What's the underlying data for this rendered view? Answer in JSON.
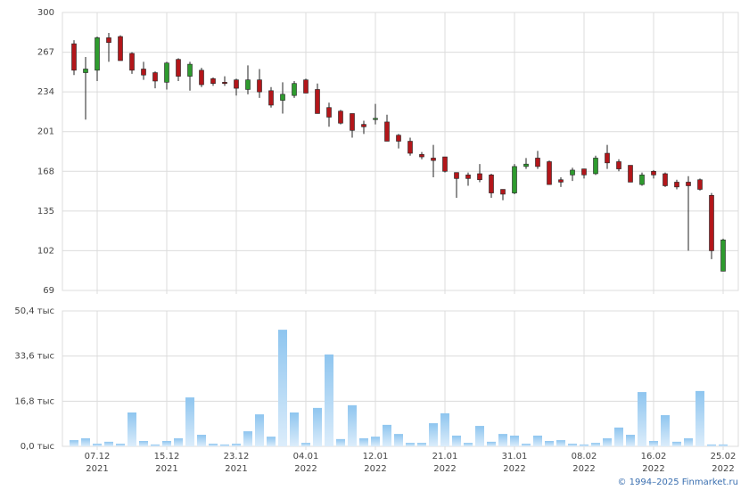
{
  "chart_data": [
    {
      "type": "candlestick",
      "ylim": [
        69,
        300
      ],
      "yticks": [
        69,
        102,
        135,
        168,
        201,
        234,
        267,
        300
      ],
      "grid": true,
      "up_color": "#2e9b2e",
      "down_color": "#b3161a",
      "open": [
        274,
        250,
        252,
        279,
        280,
        266,
        253,
        250,
        242,
        261,
        247,
        252,
        245,
        242,
        244,
        236,
        244,
        235,
        227,
        231,
        244,
        236,
        221,
        218,
        216,
        207,
        211,
        209,
        198,
        193,
        182,
        179,
        180,
        167,
        165,
        166,
        165,
        153,
        150,
        172,
        179,
        176,
        161,
        165,
        170,
        166,
        183,
        176,
        173,
        157,
        168,
        166,
        159,
        159,
        161,
        148,
        85
      ],
      "high": [
        277,
        263,
        280,
        283,
        281,
        267,
        259,
        251,
        259,
        262,
        259,
        254,
        246,
        247,
        245,
        256,
        253,
        238,
        242,
        243,
        245,
        241,
        225,
        219,
        216,
        210,
        224,
        215,
        199,
        196,
        184,
        190,
        180,
        167,
        167,
        174,
        166,
        153,
        174,
        179,
        185,
        177,
        163,
        171,
        170,
        181,
        190,
        178,
        173,
        167,
        169,
        167,
        161,
        164,
        162,
        150,
        112
      ],
      "low": [
        248,
        211,
        243,
        259,
        260,
        249,
        244,
        237,
        236,
        243,
        235,
        238,
        239,
        239,
        231,
        232,
        229,
        221,
        216,
        229,
        233,
        216,
        205,
        207,
        196,
        199,
        207,
        193,
        187,
        181,
        178,
        163,
        167,
        146,
        156,
        159,
        146,
        144,
        149,
        170,
        170,
        157,
        155,
        160,
        162,
        165,
        170,
        168,
        159,
        156,
        162,
        155,
        153,
        102,
        152,
        95,
        85
      ],
      "close": [
        252,
        253,
        279,
        275,
        260,
        252,
        248,
        243,
        258,
        247,
        257,
        240,
        241,
        241,
        237,
        244,
        234,
        223,
        232,
        241,
        233,
        216,
        213,
        208,
        202,
        205,
        212,
        193,
        193,
        183,
        180,
        177,
        168,
        162,
        162,
        161,
        150,
        149,
        172,
        174,
        172,
        157,
        159,
        169,
        165,
        179,
        175,
        170,
        159,
        165,
        165,
        156,
        155,
        156,
        153,
        102,
        111
      ]
    },
    {
      "type": "bar",
      "ylim": [
        0,
        50.4
      ],
      "yticks": [
        {
          "value": 0,
          "label": "0,0 тыс"
        },
        {
          "value": 16.8,
          "label": "16,8 тыс"
        },
        {
          "value": 33.6,
          "label": "33,6 тыс"
        },
        {
          "value": 50.4,
          "label": "50,4 тыс"
        }
      ],
      "grid": true,
      "color": "#8ec5ef",
      "categories": [
        null,
        null,
        [
          "07.12",
          "2021"
        ],
        null,
        null,
        null,
        null,
        null,
        [
          "15.12",
          "2021"
        ],
        null,
        null,
        null,
        null,
        null,
        [
          "23.12",
          "2021"
        ],
        null,
        null,
        null,
        null,
        null,
        [
          "04.01",
          "2022"
        ],
        null,
        null,
        null,
        null,
        null,
        [
          "12.01",
          "2022"
        ],
        null,
        null,
        null,
        null,
        null,
        [
          "21.01",
          "2022"
        ],
        null,
        null,
        null,
        null,
        null,
        [
          "31.01",
          "2022"
        ],
        null,
        null,
        null,
        null,
        null,
        [
          "08.02",
          "2022"
        ],
        null,
        null,
        null,
        null,
        null,
        [
          "16.02",
          "2022"
        ],
        null,
        null,
        null,
        null,
        null,
        [
          "25.02",
          "2022"
        ]
      ],
      "values": [
        2.3,
        3.0,
        1.0,
        1.7,
        1.0,
        12.6,
        2.0,
        0.7,
        2.0,
        3.0,
        18.2,
        4.3,
        1.0,
        0.7,
        1.0,
        5.6,
        11.9,
        3.6,
        43.4,
        12.6,
        1.3,
        14.3,
        34.2,
        2.7,
        15.3,
        3.0,
        3.6,
        8.0,
        4.6,
        1.3,
        1.3,
        8.6,
        12.3,
        4.0,
        1.3,
        7.6,
        1.7,
        4.6,
        4.0,
        1.0,
        4.0,
        2.0,
        2.3,
        1.0,
        0.7,
        1.3,
        3.0,
        7.0,
        4.3,
        20.2,
        2.0,
        11.6,
        1.7,
        3.0,
        20.6,
        0.7,
        0.7
      ]
    }
  ],
  "footer": "© 1994–2025 Finmarket.ru"
}
